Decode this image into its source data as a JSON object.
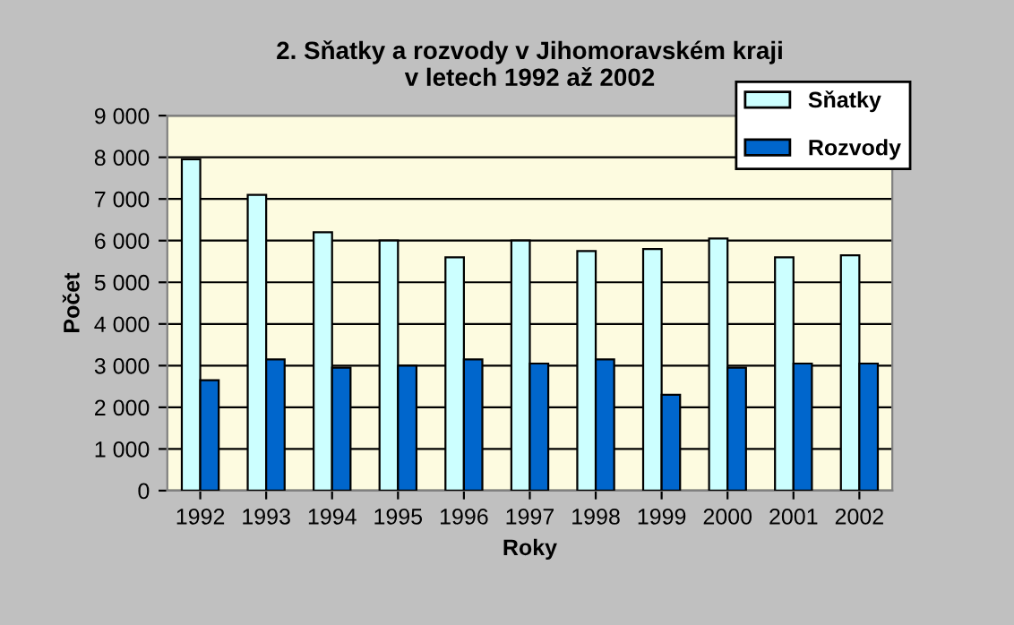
{
  "chart_data": {
    "type": "bar",
    "title": "2. Sňatky a rozvody v Jihomoravském kraji\nv letech 1992 až 2002",
    "xlabel": "Roky",
    "ylabel": "Počet",
    "categories": [
      "1992",
      "1993",
      "1994",
      "1995",
      "1996",
      "1997",
      "1998",
      "1999",
      "2000",
      "2001",
      "2002"
    ],
    "series": [
      {
        "name": "Sňatky",
        "color": "#ccffff",
        "values": [
          7950,
          7100,
          6200,
          6000,
          5600,
          6000,
          5750,
          5800,
          6050,
          5600,
          5650
        ]
      },
      {
        "name": "Rozvody",
        "color": "#0066cc",
        "values": [
          2650,
          3150,
          2950,
          3000,
          3150,
          3050,
          3150,
          2300,
          2950,
          3050,
          3050
        ]
      }
    ],
    "ylim": [
      0,
      9000
    ],
    "yticks": [
      0,
      {
        "value": 1000,
        "label": "1 000"
      },
      {
        "value": 2000,
        "label": "2 000"
      },
      {
        "value": 3000,
        "label": "3 000"
      },
      {
        "value": 4000,
        "label": "4 000"
      },
      {
        "value": 5000,
        "label": "5 000"
      },
      {
        "value": 6000,
        "label": "6 000"
      },
      {
        "value": 7000,
        "label": "7 000"
      },
      {
        "value": 8000,
        "label": "8 000"
      },
      {
        "value": 9000,
        "label": "9 000"
      }
    ],
    "grid": "y",
    "legend": "top right"
  }
}
